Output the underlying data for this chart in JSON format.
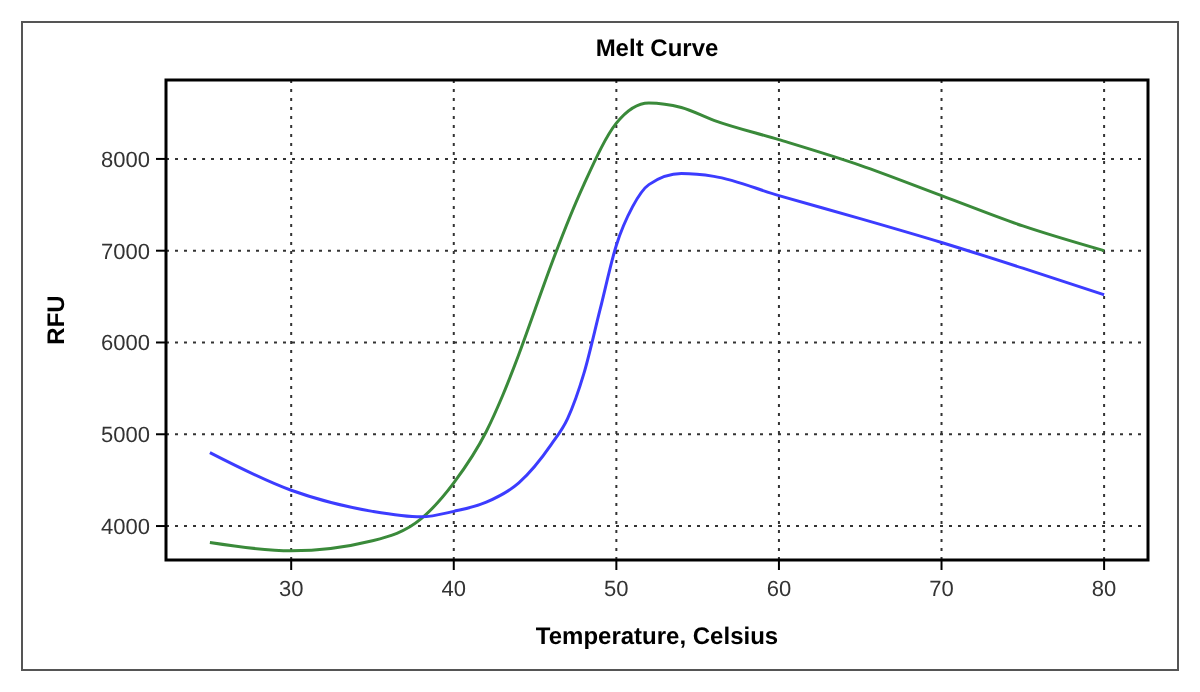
{
  "chart_data": {
    "type": "line",
    "title": "Melt Curve",
    "xlabel": "Temperature, Celsius",
    "ylabel": "RFU",
    "xlim": [
      22.3,
      82.7
    ],
    "xticks": [
      30,
      40,
      50,
      60,
      70,
      80
    ],
    "ylim": [
      3630,
      8860
    ],
    "yticks": [
      4000,
      5000,
      6000,
      7000,
      8000
    ],
    "grid": true,
    "series": [
      {
        "color": "#3a8a3a",
        "x": [
          25,
          30,
          35,
          38,
          40,
          42,
          43,
          44,
          45,
          46,
          48,
          50,
          52,
          54,
          56,
          60,
          65,
          70,
          75,
          80
        ],
        "values": [
          3820,
          3730,
          3840,
          4080,
          4470,
          5030,
          5420,
          5870,
          6360,
          6850,
          7720,
          8390,
          8610,
          8560,
          8420,
          8210,
          7930,
          7600,
          7270,
          7000
        ]
      },
      {
        "color": "#3c3cff",
        "x": [
          25,
          30,
          35,
          38,
          40,
          42,
          44,
          46,
          47,
          48,
          49,
          50,
          51,
          52,
          54,
          56,
          60,
          65,
          70,
          75,
          80
        ],
        "values": [
          4800,
          4390,
          4160,
          4100,
          4160,
          4260,
          4470,
          4890,
          5170,
          5660,
          6360,
          7060,
          7480,
          7720,
          7840,
          7810,
          7600,
          7350,
          7090,
          6810,
          6520
        ]
      }
    ]
  }
}
